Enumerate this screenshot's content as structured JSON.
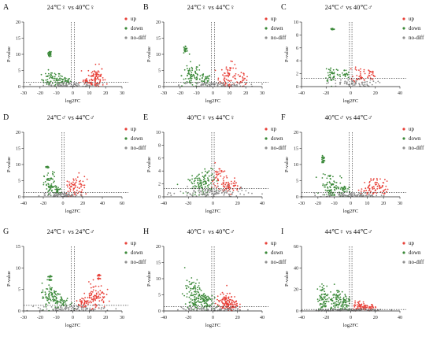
{
  "figure": {
    "colors": {
      "up": "#e8423a",
      "down": "#3c8a3a",
      "nodiff": "#8f8f8f",
      "axis": "#222222",
      "threshold": "#222222"
    }
  },
  "chart_data": [
    {
      "panel": "A",
      "type": "scatter",
      "title": "24℃♀ vs 40℃♀",
      "xlabel": "log2FC",
      "ylabel": "P-value",
      "xlim": [
        -30,
        30
      ],
      "ylim": [
        0,
        20
      ],
      "xticks": [
        -30,
        -20,
        -10,
        0,
        10,
        20,
        30
      ],
      "yticks": [
        0,
        5,
        10,
        15,
        20
      ],
      "legend": [
        "up",
        "down",
        "no-diff"
      ],
      "threshold": {
        "x": [
          -1,
          1
        ],
        "y": 1.3
      },
      "clusters": [
        {
          "s": "down",
          "x": -14,
          "y": 10.5,
          "n": 18,
          "sx": 0.6,
          "sy": 0.25
        },
        {
          "s": "down",
          "x": -14,
          "y": 9.8,
          "n": 12,
          "sx": 0.6,
          "sy": 0.2
        },
        {
          "s": "down",
          "x": -13,
          "y": 2.2,
          "n": 60,
          "sx": 3,
          "sy": 1.2
        },
        {
          "s": "down",
          "x": -5,
          "y": 1.8,
          "n": 35,
          "sx": 2,
          "sy": 0.7
        },
        {
          "s": "up",
          "x": 14,
          "y": 2.8,
          "n": 85,
          "sx": 2.5,
          "sy": 1.8
        },
        {
          "s": "up",
          "x": 8,
          "y": 1.6,
          "n": 25,
          "sx": 2,
          "sy": 0.5
        },
        {
          "s": "nodiff",
          "x": 0,
          "y": 0.5,
          "n": 70,
          "sx": 9,
          "sy": 0.35
        }
      ]
    },
    {
      "panel": "B",
      "type": "scatter",
      "title": "24℃♀ vs 44℃♀",
      "xlabel": "log2FC",
      "ylabel": "P-value",
      "xlim": [
        -30,
        30
      ],
      "ylim": [
        0,
        20
      ],
      "xticks": [
        -30,
        -20,
        -10,
        0,
        10,
        20,
        30
      ],
      "yticks": [
        0,
        5,
        10,
        15,
        20
      ],
      "legend": [
        "up",
        "down",
        "no-diff"
      ],
      "threshold": {
        "x": [
          -1,
          1
        ],
        "y": 1.3
      },
      "clusters": [
        {
          "s": "down",
          "x": -17,
          "y": 11.8,
          "n": 14,
          "sx": 0.6,
          "sy": 0.3
        },
        {
          "s": "down",
          "x": -17,
          "y": 10.8,
          "n": 10,
          "sx": 0.6,
          "sy": 0.2
        },
        {
          "s": "down",
          "x": -13,
          "y": 3.5,
          "n": 70,
          "sx": 3,
          "sy": 2
        },
        {
          "s": "down",
          "x": -5,
          "y": 2,
          "n": 35,
          "sx": 2,
          "sy": 0.9
        },
        {
          "s": "up",
          "x": 10,
          "y": 3,
          "n": 70,
          "sx": 3,
          "sy": 2
        },
        {
          "s": "up",
          "x": 18,
          "y": 2.5,
          "n": 25,
          "sx": 2,
          "sy": 1
        },
        {
          "s": "nodiff",
          "x": 0,
          "y": 0.5,
          "n": 80,
          "sx": 10,
          "sy": 0.35
        }
      ]
    },
    {
      "panel": "C",
      "type": "scatter",
      "title": "24℃♂ vs 40℃♂",
      "xlabel": "log2FC",
      "ylabel": "P-value",
      "xlim": [
        -40,
        40
      ],
      "ylim": [
        0,
        10
      ],
      "xticks": [
        -40,
        -20,
        0,
        20,
        40
      ],
      "yticks": [
        0,
        2,
        4,
        6,
        8,
        10
      ],
      "legend": [
        "up",
        "down",
        "no-diff"
      ],
      "threshold": {
        "x": [
          -1,
          1
        ],
        "y": 1.3
      },
      "clusters": [
        {
          "s": "down",
          "x": -15,
          "y": 8.9,
          "n": 22,
          "sx": 0.9,
          "sy": 0.08
        },
        {
          "s": "down",
          "x": -15,
          "y": 2,
          "n": 40,
          "sx": 3,
          "sy": 0.7
        },
        {
          "s": "down",
          "x": -5,
          "y": 1.8,
          "n": 20,
          "sx": 2,
          "sy": 0.4
        },
        {
          "s": "up",
          "x": 8,
          "y": 2,
          "n": 35,
          "sx": 3,
          "sy": 0.7
        },
        {
          "s": "up",
          "x": 16,
          "y": 1.8,
          "n": 20,
          "sx": 2,
          "sy": 0.5
        },
        {
          "s": "nodiff",
          "x": 0,
          "y": 0.5,
          "n": 65,
          "sx": 10,
          "sy": 0.3
        }
      ]
    },
    {
      "panel": "D",
      "type": "scatter",
      "title": "24℃♂ vs 44℃♂",
      "xlabel": "log2FC",
      "ylabel": "P-value",
      "xlim": [
        -40,
        60
      ],
      "ylim": [
        0,
        20
      ],
      "xticks": [
        -40,
        -20,
        0,
        20,
        40,
        60
      ],
      "yticks": [
        0,
        5,
        10,
        15,
        20
      ],
      "legend": [
        "up",
        "down",
        "no-diff"
      ],
      "threshold": {
        "x": [
          -1,
          1
        ],
        "y": 1.3
      },
      "clusters": [
        {
          "s": "down",
          "x": -16,
          "y": 9.2,
          "n": 14,
          "sx": 0.8,
          "sy": 0.15
        },
        {
          "s": "down",
          "x": -13,
          "y": 3.5,
          "n": 65,
          "sx": 3,
          "sy": 2
        },
        {
          "s": "down",
          "x": -5,
          "y": 2,
          "n": 25,
          "sx": 2,
          "sy": 0.8
        },
        {
          "s": "up",
          "x": 10,
          "y": 3,
          "n": 45,
          "sx": 3,
          "sy": 1.5
        },
        {
          "s": "up",
          "x": 18,
          "y": 3,
          "n": 25,
          "sx": 2.5,
          "sy": 2
        },
        {
          "s": "nodiff",
          "x": 0,
          "y": 0.5,
          "n": 70,
          "sx": 11,
          "sy": 0.35
        }
      ]
    },
    {
      "panel": "E",
      "type": "scatter",
      "title": "40℃♀ vs 44℃♀",
      "xlabel": "log2FC",
      "ylabel": "P-value",
      "xlim": [
        -40,
        40
      ],
      "ylim": [
        0,
        10
      ],
      "xticks": [
        -40,
        -20,
        0,
        20,
        40
      ],
      "yticks": [
        0,
        2,
        4,
        6,
        8,
        10
      ],
      "legend": [
        "up",
        "down",
        "no-diff"
      ],
      "threshold": {
        "x": [
          -1,
          1
        ],
        "y": 1.3
      },
      "clusters": [
        {
          "s": "down",
          "x": -10,
          "y": 1.8,
          "n": 80,
          "sx": 5,
          "sy": 0.7
        },
        {
          "s": "down",
          "x": -5,
          "y": 2.8,
          "n": 40,
          "sx": 3,
          "sy": 1.1
        },
        {
          "s": "up",
          "x": 5,
          "y": 2.8,
          "n": 40,
          "sx": 3,
          "sy": 1.1
        },
        {
          "s": "up",
          "x": 13,
          "y": 1.6,
          "n": 50,
          "sx": 4,
          "sy": 0.5
        },
        {
          "s": "nodiff",
          "x": 0,
          "y": 0.6,
          "n": 110,
          "sx": 14,
          "sy": 0.4
        }
      ]
    },
    {
      "panel": "F",
      "type": "scatter",
      "title": "40℃♂ vs 44℃♂",
      "xlabel": "log2FC",
      "ylabel": "P-value",
      "xlim": [
        -30,
        30
      ],
      "ylim": [
        0,
        20
      ],
      "xticks": [
        -30,
        -20,
        -10,
        0,
        10,
        20,
        30
      ],
      "yticks": [
        0,
        5,
        10,
        15,
        20
      ],
      "legend": [
        "up",
        "down",
        "no-diff"
      ],
      "threshold": {
        "x": [
          -1,
          1
        ],
        "y": 1.3
      },
      "clusters": [
        {
          "s": "down",
          "x": -17,
          "y": 12,
          "n": 12,
          "sx": 0.5,
          "sy": 0.3
        },
        {
          "s": "down",
          "x": -17,
          "y": 11,
          "n": 10,
          "sx": 0.5,
          "sy": 0.2
        },
        {
          "s": "down",
          "x": -12,
          "y": 3.5,
          "n": 75,
          "sx": 3,
          "sy": 2
        },
        {
          "s": "down",
          "x": -5,
          "y": 2,
          "n": 30,
          "sx": 2,
          "sy": 0.8
        },
        {
          "s": "up",
          "x": 12,
          "y": 2.5,
          "n": 60,
          "sx": 3,
          "sy": 1.5
        },
        {
          "s": "up",
          "x": 20,
          "y": 2.8,
          "n": 20,
          "sx": 1.5,
          "sy": 1.5
        },
        {
          "s": "nodiff",
          "x": 0,
          "y": 0.5,
          "n": 80,
          "sx": 9,
          "sy": 0.35
        }
      ]
    },
    {
      "panel": "G",
      "type": "scatter",
      "title": "24℃♀ vs 24℃♂",
      "xlabel": "log2FC",
      "ylabel": "P-value",
      "xlim": [
        -30,
        30
      ],
      "ylim": [
        0,
        15
      ],
      "xticks": [
        -30,
        -20,
        -10,
        0,
        10,
        20,
        30
      ],
      "yticks": [
        0,
        5,
        10,
        15
      ],
      "legend": [
        "up",
        "down",
        "no-diff"
      ],
      "threshold": {
        "x": [
          -1,
          1
        ],
        "y": 1.3
      },
      "clusters": [
        {
          "s": "down",
          "x": -14,
          "y": 8,
          "n": 14,
          "sx": 0.6,
          "sy": 0.1
        },
        {
          "s": "down",
          "x": -14,
          "y": 7.2,
          "n": 12,
          "sx": 0.6,
          "sy": 0.1
        },
        {
          "s": "down",
          "x": -13,
          "y": 3.5,
          "n": 80,
          "sx": 3,
          "sy": 1.5
        },
        {
          "s": "down",
          "x": -6,
          "y": 2,
          "n": 40,
          "sx": 2.5,
          "sy": 0.7
        },
        {
          "s": "up",
          "x": 16,
          "y": 8.3,
          "n": 14,
          "sx": 0.6,
          "sy": 0.1
        },
        {
          "s": "up",
          "x": 16,
          "y": 7.5,
          "n": 12,
          "sx": 0.6,
          "sy": 0.1
        },
        {
          "s": "up",
          "x": 14,
          "y": 3.5,
          "n": 80,
          "sx": 3,
          "sy": 1.5
        },
        {
          "s": "up",
          "x": 6,
          "y": 2,
          "n": 40,
          "sx": 2.5,
          "sy": 0.7
        },
        {
          "s": "nodiff",
          "x": 0,
          "y": 0.5,
          "n": 90,
          "sx": 10,
          "sy": 0.35
        }
      ]
    },
    {
      "panel": "H",
      "type": "scatter",
      "title": "40℃♀ vs 40℃♂",
      "xlabel": "log2FC",
      "ylabel": "P-value",
      "xlim": [
        -40,
        40
      ],
      "ylim": [
        0,
        20
      ],
      "xticks": [
        -40,
        -20,
        0,
        20,
        40
      ],
      "yticks": [
        0,
        5,
        10,
        15,
        20
      ],
      "legend": [
        "up",
        "down",
        "no-diff"
      ],
      "threshold": {
        "x": [
          -1,
          1
        ],
        "y": 1.3
      },
      "clusters": [
        {
          "s": "down",
          "x": -15,
          "y": 4.5,
          "n": 120,
          "sx": 4,
          "sy": 2.5
        },
        {
          "s": "down",
          "x": -6,
          "y": 3,
          "n": 60,
          "sx": 3,
          "sy": 1.5
        },
        {
          "s": "up",
          "x": 10,
          "y": 2.5,
          "n": 90,
          "sx": 3.5,
          "sy": 1.5
        },
        {
          "s": "up",
          "x": 16,
          "y": 2,
          "n": 40,
          "sx": 2.5,
          "sy": 1
        },
        {
          "s": "nodiff",
          "x": 0,
          "y": 0.5,
          "n": 90,
          "sx": 13,
          "sy": 0.35
        }
      ]
    },
    {
      "panel": "I",
      "type": "scatter",
      "title": "44℃♀ vs 44℃♂",
      "xlabel": "log2FC",
      "ylabel": "P-value",
      "xlim": [
        -40,
        40
      ],
      "ylim": [
        0,
        60
      ],
      "xticks": [
        -40,
        -20,
        0,
        20,
        40
      ],
      "yticks": [
        0,
        20,
        40,
        60
      ],
      "legend": [
        "up",
        "down",
        "no-diff"
      ],
      "threshold": {
        "x": [
          -1,
          1
        ],
        "y": 1.3
      },
      "clusters": [
        {
          "s": "down",
          "x": -22,
          "y": 12,
          "n": 70,
          "sx": 2.5,
          "sy": 6
        },
        {
          "s": "down",
          "x": -12,
          "y": 10,
          "n": 80,
          "sx": 3,
          "sy": 6
        },
        {
          "s": "down",
          "x": -4,
          "y": 8,
          "n": 40,
          "sx": 2,
          "sy": 5
        },
        {
          "s": "up",
          "x": 8,
          "y": 4,
          "n": 55,
          "sx": 3,
          "sy": 2.5
        },
        {
          "s": "up",
          "x": 15,
          "y": 3,
          "n": 30,
          "sx": 3,
          "sy": 1.5
        },
        {
          "s": "nodiff",
          "x": 0,
          "y": 0.8,
          "n": 90,
          "sx": 14,
          "sy": 0.6
        }
      ]
    }
  ]
}
